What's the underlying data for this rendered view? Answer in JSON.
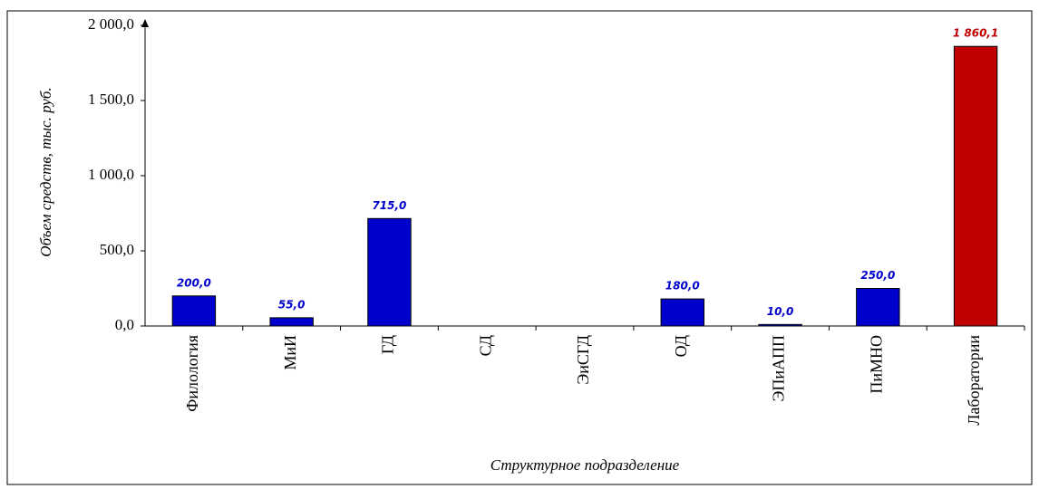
{
  "chart_data": {
    "type": "bar",
    "x_label": "Структурное подразделение",
    "y_label": "Объем средств, тыс. руб.",
    "categories": [
      "Филология",
      "МиИ",
      "ГД",
      "СД",
      "ЭиСГД",
      "ОД",
      "ЭПиАПП",
      "ПиМНО",
      "Лаборатории"
    ],
    "values": [
      200,
      55,
      715,
      null,
      null,
      180,
      10,
      250,
      1860.1
    ],
    "value_labels": [
      "200,0",
      "55,0",
      "715,0",
      null,
      null,
      "180,0",
      "10,0",
      "250,0",
      "1 860,1"
    ],
    "colors": [
      "#0000cc",
      "#0000cc",
      "#0000cc",
      "#0000cc",
      "#0000cc",
      "#0000cc",
      "#0000cc",
      "#0000cc",
      "#c00000"
    ],
    "ylim": [
      0,
      2000
    ],
    "yticks": [
      {
        "value": 0,
        "label": "0,0"
      },
      {
        "value": 500,
        "label": "500,0"
      },
      {
        "value": 1000,
        "label": "1 000,0"
      },
      {
        "value": 1500,
        "label": "1 500,0"
      },
      {
        "value": 2000,
        "label": "2 000,0"
      }
    ],
    "grid": false
  }
}
